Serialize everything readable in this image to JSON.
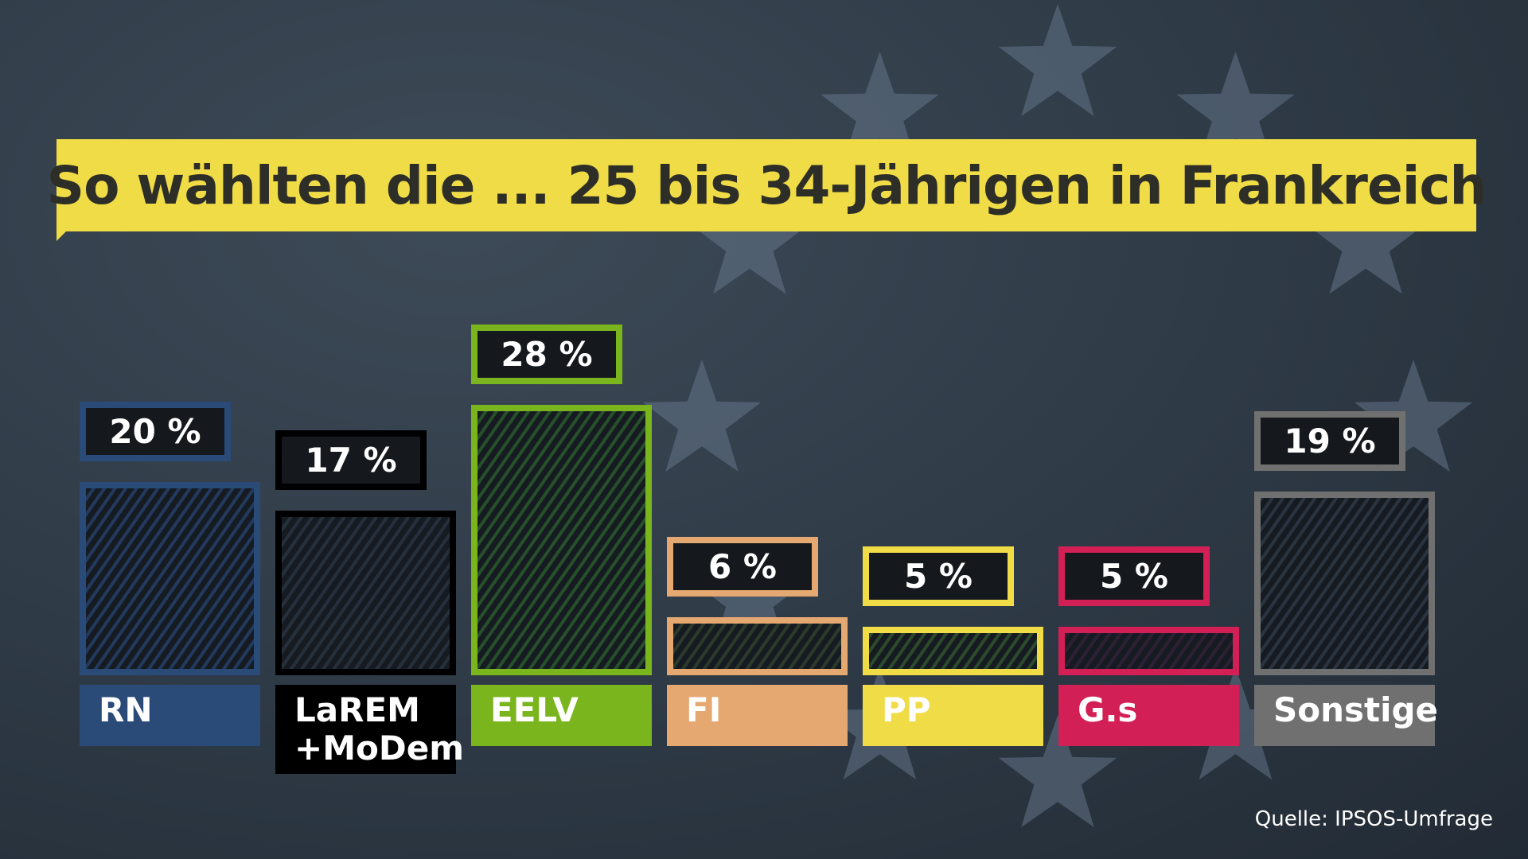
{
  "title": "So wählten die ... 25 bis 34-Jährigen in Frankreich",
  "source": "Quelle: IPSOS-Umfrage",
  "chart_data": {
    "type": "bar",
    "title": "So wählten die ... 25 bis 34-Jährigen in Frankreich",
    "categories": [
      "RN",
      "LaREM +MoDem",
      "EELV",
      "FI",
      "PP",
      "G.s",
      "Sonstige"
    ],
    "category_lines": [
      [
        "RN"
      ],
      [
        "LaREM",
        "+MoDem"
      ],
      [
        "EELV"
      ],
      [
        "FI"
      ],
      [
        "PP"
      ],
      [
        "G.s"
      ],
      [
        "Sonstige"
      ]
    ],
    "values": [
      20,
      17,
      28,
      6,
      5,
      5,
      19
    ],
    "value_labels": [
      "20 %",
      "17 %",
      "28 %",
      "6 %",
      "5 %",
      "5 %",
      "19 %"
    ],
    "colors": [
      "#2a4a78",
      "#000000",
      "#7ab51d",
      "#e4a870",
      "#f0dc46",
      "#d21f55",
      "#707070"
    ],
    "ylim": [
      0,
      30
    ],
    "grid": false,
    "unit": "%"
  }
}
